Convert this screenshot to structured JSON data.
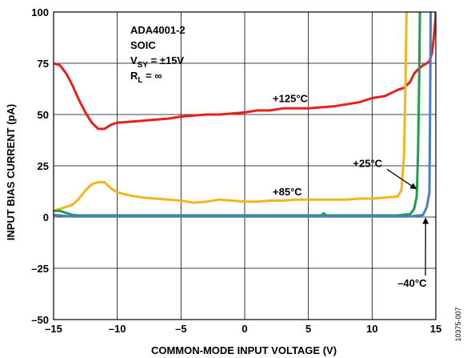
{
  "chart_data": {
    "type": "line",
    "title": "",
    "xlabel": "COMMON-MODE INPUT VOLTAGE (V)",
    "ylabel": "INPUT BIAS CURRENT (pA)",
    "xlim": [
      -15,
      15
    ],
    "ylim": [
      -50,
      100
    ],
    "xticks": [
      -15,
      -10,
      -5,
      0,
      5,
      10,
      15
    ],
    "xtick_labels": [
      "–15",
      "–10",
      "–5",
      "0",
      "5",
      "10",
      "15"
    ],
    "yticks": [
      -50,
      -25,
      0,
      25,
      50,
      75,
      100
    ],
    "ytick_labels": [
      "–50",
      "–25",
      "0",
      "25",
      "50",
      "75",
      "100"
    ],
    "grid": true,
    "legend": "none",
    "conditions": {
      "part": "ADA4001-2",
      "package": "SOIC",
      "vsy_sub": "SY",
      "vsy_value": " = ±15V",
      "rl_sub": "L",
      "rl_value": " = ∞"
    },
    "figure_id": "10375-007",
    "series": [
      {
        "name": "+125°C",
        "color": "#e8201c",
        "x": [
          -15,
          -14.5,
          -14,
          -13.5,
          -13,
          -12.5,
          -12,
          -11.5,
          -11,
          -10.5,
          -10,
          -9,
          -8,
          -7,
          -6,
          -5,
          -4,
          -3,
          -2,
          -1,
          0,
          1,
          2,
          3,
          4,
          5,
          6,
          7,
          8,
          9,
          10,
          11,
          12,
          12.5,
          13,
          13.3,
          13.6,
          14,
          14.3,
          14.5,
          14.7,
          14.85,
          14.95,
          15
        ],
        "y": [
          75,
          74,
          70,
          64,
          57,
          51,
          46,
          43,
          43,
          45,
          46,
          46.5,
          47,
          47.5,
          48,
          49,
          49.5,
          50,
          50,
          50.5,
          51,
          52,
          52,
          53,
          53,
          53,
          53.5,
          54,
          55,
          56,
          58,
          59,
          62,
          63,
          66,
          70,
          72,
          74,
          75,
          76,
          80,
          88,
          95,
          100
        ]
      },
      {
        "name": "+85°C",
        "color": "#f5b51a",
        "x": [
          -15,
          -14,
          -13.5,
          -13,
          -12.5,
          -12,
          -11.5,
          -11,
          -10.5,
          -10,
          -9,
          -8,
          -7,
          -6,
          -5,
          -4,
          -3,
          -2,
          -1,
          0,
          1,
          2,
          3,
          4,
          5,
          6,
          7,
          8,
          9,
          10,
          11,
          12,
          12.3,
          12.5,
          12.6,
          12.7
        ],
        "y": [
          3,
          5,
          6,
          9,
          13,
          16,
          17,
          17,
          14,
          12,
          10.5,
          9.5,
          9,
          8.5,
          8,
          7,
          7.5,
          8.5,
          8,
          7.5,
          7.5,
          8,
          8,
          8.5,
          8.5,
          8.5,
          8.5,
          8.5,
          9,
          9,
          9.5,
          10,
          13,
          30,
          60,
          100
        ]
      },
      {
        "name": "+25°C",
        "color": "#1ba04a",
        "x": [
          -15,
          -14.5,
          -14,
          -13.5,
          -13,
          -12,
          -10,
          -5,
          0,
          5,
          6,
          6.2,
          6.4,
          7,
          10,
          12,
          13,
          13.3,
          13.5,
          13.6,
          13.7,
          13.75
        ],
        "y": [
          3,
          3,
          2,
          1,
          0.8,
          0.8,
          0.8,
          0.8,
          0.8,
          0.8,
          0.8,
          1.8,
          0.8,
          0.8,
          0.8,
          0.8,
          1.5,
          4,
          10,
          30,
          70,
          100
        ]
      },
      {
        "name": "–40°C",
        "color": "#4a7cc7",
        "x": [
          -15,
          -14.5,
          -14,
          -13.5,
          -13,
          -12,
          -10,
          -5,
          0,
          5,
          10,
          13,
          14,
          14.3,
          14.5,
          14.55,
          14.6
        ],
        "y": [
          1,
          0.8,
          0.5,
          0.3,
          0.3,
          0.3,
          0.3,
          0.3,
          0.3,
          0.3,
          0.3,
          0.3,
          1,
          5,
          12,
          50,
          100
        ]
      }
    ],
    "annotations": [
      {
        "text": "+125°C",
        "x": 2.2,
        "y": 56,
        "arrow": false
      },
      {
        "text": "+85°C",
        "x": 2.2,
        "y": 10.5,
        "arrow": false
      },
      {
        "text": "+25°C",
        "x": 8.5,
        "y": 24.5,
        "arrow": true,
        "arrow_to": [
          13.4,
          14
        ]
      },
      {
        "text": "–40°C",
        "x": 12.0,
        "y": -34,
        "arrow": true,
        "arrow_to": [
          14.2,
          -1
        ]
      }
    ]
  }
}
